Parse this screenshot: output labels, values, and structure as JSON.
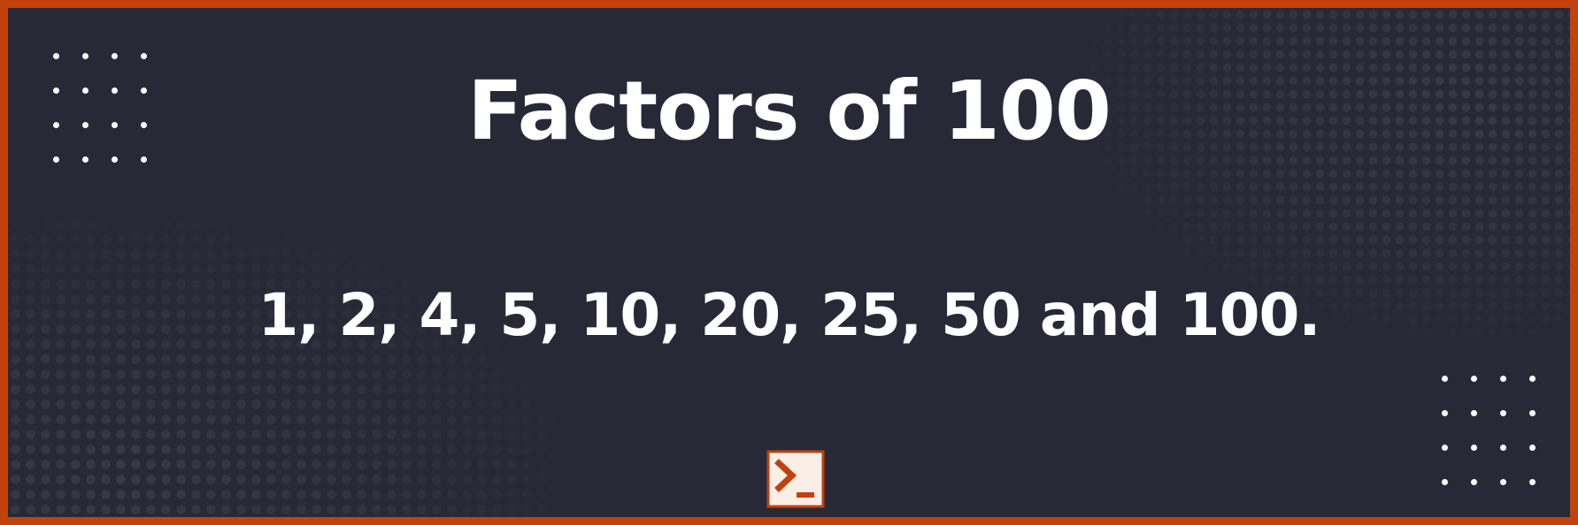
{
  "title": "Factors of 100",
  "factors_text": "1, 2, 4, 5, 10, 20, 25, 50 and 100.",
  "logo_icon": "terminal-prompt-icon",
  "colors": {
    "background": "#272a36",
    "border": "#c2410c",
    "text": "#ffffff",
    "accent": "#c2410c"
  }
}
